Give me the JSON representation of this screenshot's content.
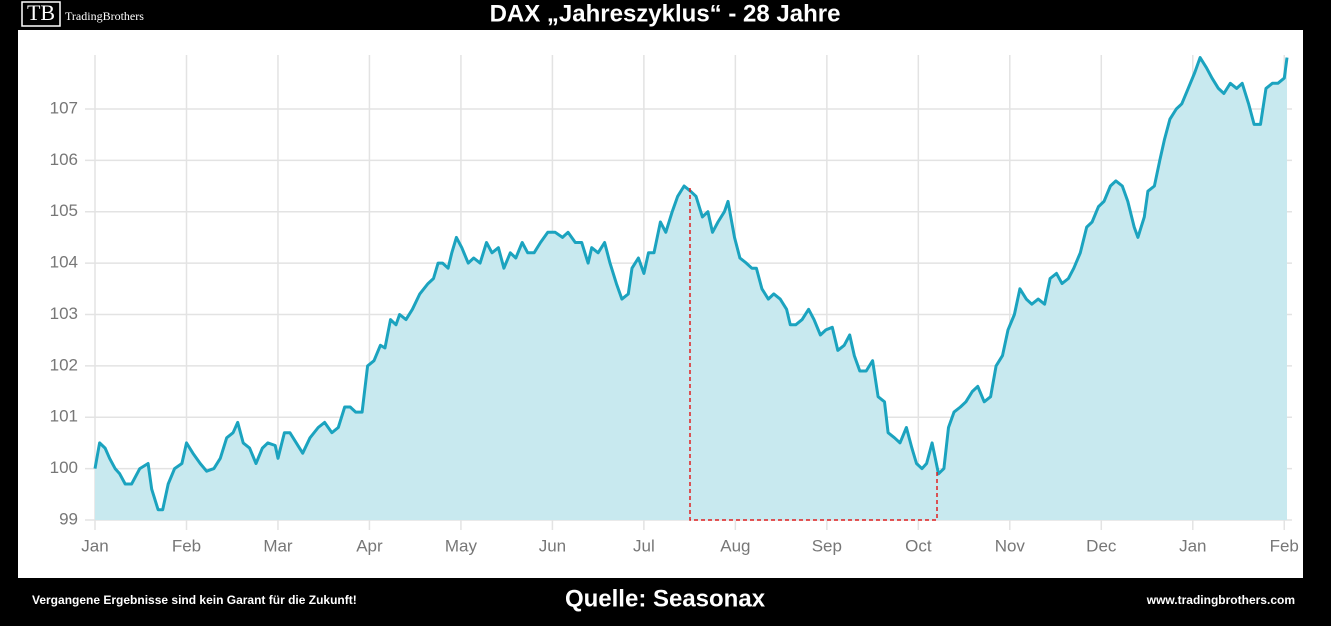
{
  "header": {
    "logo": "TB",
    "brand": "TradingBrothers",
    "title": "DAX „Jahreszyklus“ - 28 Jahre"
  },
  "footer": {
    "disclaimer": "Vergangene Ergebnisse sind kein Garant für die Zukunft!",
    "source": "Quelle: Seasonax",
    "website": "www.tradingbrothers.com"
  },
  "chart_data": {
    "type": "area",
    "color": "#1ba3bf",
    "fill_color": "#c8e9ef",
    "grid": true,
    "xlim": [
      0,
      13.03
    ],
    "ylim": [
      99,
      108.05
    ],
    "xticks": [
      {
        "value": 0,
        "label": "Jan"
      },
      {
        "value": 1,
        "label": "Feb"
      },
      {
        "value": 2,
        "label": "Mar"
      },
      {
        "value": 3,
        "label": "Apr"
      },
      {
        "value": 4,
        "label": "May"
      },
      {
        "value": 5,
        "label": "Jun"
      },
      {
        "value": 6,
        "label": "Jul"
      },
      {
        "value": 7,
        "label": "Aug"
      },
      {
        "value": 8,
        "label": "Sep"
      },
      {
        "value": 9,
        "label": "Oct"
      },
      {
        "value": 10,
        "label": "Nov"
      },
      {
        "value": 11,
        "label": "Dec"
      },
      {
        "value": 12,
        "label": "Jan"
      },
      {
        "value": 13,
        "label": "Feb"
      }
    ],
    "yticks": [
      99,
      100,
      101,
      102,
      103,
      104,
      105,
      106,
      107
    ],
    "x": [
      0,
      0.05,
      0.11,
      0.16,
      0.22,
      0.27,
      0.33,
      0.4,
      0.49,
      0.58,
      0.62,
      0.69,
      0.74,
      0.8,
      0.87,
      0.95,
      1.0,
      1.07,
      1.15,
      1.22,
      1.3,
      1.37,
      1.44,
      1.51,
      1.56,
      1.62,
      1.69,
      1.76,
      1.83,
      1.89,
      1.97,
      2.0,
      2.07,
      2.13,
      2.2,
      2.27,
      2.35,
      2.44,
      2.51,
      2.59,
      2.66,
      2.73,
      2.79,
      2.85,
      2.92,
      2.98,
      3.05,
      3.12,
      3.17,
      3.23,
      3.29,
      3.33,
      3.4,
      3.47,
      3.55,
      3.64,
      3.7,
      3.75,
      3.8,
      3.86,
      3.9,
      3.95,
      4.01,
      4.08,
      4.14,
      4.21,
      4.28,
      4.34,
      4.41,
      4.47,
      4.54,
      4.6,
      4.67,
      4.73,
      4.8,
      4.87,
      4.95,
      5.03,
      5.11,
      5.17,
      5.25,
      5.32,
      5.39,
      5.43,
      5.5,
      5.57,
      5.63,
      5.7,
      5.76,
      5.83,
      5.87,
      5.94,
      6.0,
      6.05,
      6.11,
      6.18,
      6.24,
      6.31,
      6.37,
      6.44,
      6.51,
      6.57,
      6.64,
      6.7,
      6.75,
      6.81,
      6.88,
      6.92,
      6.99,
      7.05,
      7.12,
      7.18,
      7.23,
      7.29,
      7.36,
      7.42,
      7.49,
      7.56,
      7.6,
      7.66,
      7.73,
      7.8,
      7.86,
      7.93,
      7.99,
      8.06,
      8.12,
      8.19,
      8.25,
      8.3,
      8.36,
      8.43,
      8.5,
      8.56,
      8.63,
      8.67,
      8.74,
      8.8,
      8.87,
      8.93,
      8.98,
      9.04,
      9.09,
      9.15,
      9.22,
      9.28,
      9.33,
      9.39,
      9.46,
      9.52,
      9.59,
      9.65,
      9.72,
      9.79,
      9.85,
      9.92,
      9.98,
      10.05,
      10.11,
      10.18,
      10.24,
      10.31,
      10.38,
      10.44,
      10.51,
      10.57,
      10.64,
      10.7,
      10.77,
      10.84,
      10.9,
      10.97,
      11.03,
      11.1,
      11.16,
      11.23,
      11.29,
      11.36,
      11.4,
      11.47,
      11.51,
      11.58,
      11.64,
      11.69,
      11.75,
      11.82,
      11.88,
      11.95,
      12.02,
      12.08,
      12.15,
      12.21,
      12.28,
      12.34,
      12.41,
      12.48,
      12.54,
      12.61,
      12.67,
      12.74,
      12.8,
      12.87,
      12.93,
      13.0,
      13.03
    ],
    "values": [
      100.0,
      100.5,
      100.4,
      100.2,
      100.0,
      99.9,
      99.7,
      99.7,
      100.0,
      100.1,
      99.6,
      99.2,
      99.2,
      99.7,
      100.0,
      100.1,
      100.5,
      100.3,
      100.1,
      99.95,
      100.0,
      100.2,
      100.6,
      100.7,
      100.9,
      100.5,
      100.4,
      100.1,
      100.4,
      100.5,
      100.45,
      100.2,
      100.7,
      100.7,
      100.5,
      100.3,
      100.6,
      100.8,
      100.9,
      100.7,
      100.8,
      101.2,
      101.2,
      101.1,
      101.1,
      102.0,
      102.1,
      102.4,
      102.35,
      102.9,
      102.8,
      103.0,
      102.9,
      103.1,
      103.4,
      103.6,
      103.7,
      104.0,
      104.0,
      103.9,
      104.2,
      104.5,
      104.3,
      104.0,
      104.1,
      104.0,
      104.4,
      104.2,
      104.3,
      103.9,
      104.2,
      104.1,
      104.4,
      104.2,
      104.2,
      104.4,
      104.6,
      104.6,
      104.5,
      104.6,
      104.4,
      104.4,
      104.0,
      104.3,
      104.2,
      104.4,
      104.0,
      103.6,
      103.3,
      103.4,
      103.9,
      104.1,
      103.8,
      104.2,
      104.2,
      104.8,
      104.6,
      105.0,
      105.3,
      105.5,
      105.4,
      105.3,
      104.9,
      105.0,
      104.6,
      104.8,
      105.0,
      105.2,
      104.5,
      104.1,
      104.0,
      103.9,
      103.9,
      103.5,
      103.3,
      103.4,
      103.3,
      103.1,
      102.8,
      102.8,
      102.9,
      103.1,
      102.9,
      102.6,
      102.7,
      102.75,
      102.3,
      102.4,
      102.6,
      102.2,
      101.9,
      101.9,
      102.1,
      101.4,
      101.3,
      100.7,
      100.6,
      100.5,
      100.8,
      100.4,
      100.1,
      100.0,
      100.1,
      100.5,
      99.9,
      100.0,
      100.8,
      101.1,
      101.2,
      101.3,
      101.5,
      101.6,
      101.3,
      101.4,
      102.0,
      102.2,
      102.7,
      103.0,
      103.5,
      103.3,
      103.2,
      103.3,
      103.2,
      103.7,
      103.8,
      103.6,
      103.7,
      103.9,
      104.2,
      104.7,
      104.8,
      105.1,
      105.2,
      105.5,
      105.6,
      105.5,
      105.2,
      104.7,
      104.5,
      104.9,
      105.4,
      105.5,
      106.0,
      106.4,
      106.8,
      107.0,
      107.1,
      107.4,
      107.7,
      108.0,
      107.8,
      107.6,
      107.4,
      107.3,
      107.5,
      107.4,
      107.5,
      107.1,
      106.7,
      106.7,
      107.4,
      107.5,
      107.5,
      107.6,
      108.0
    ]
  }
}
